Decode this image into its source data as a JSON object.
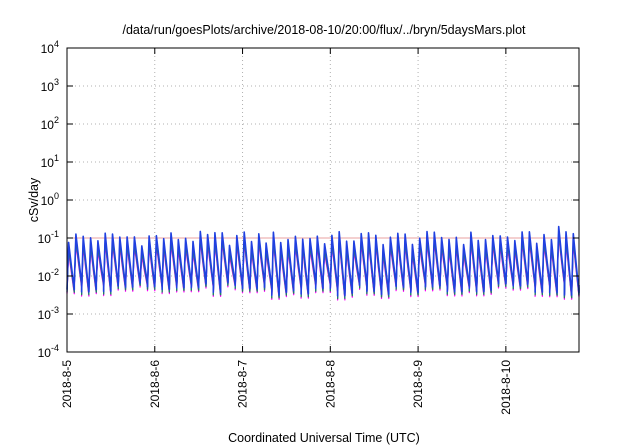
{
  "chart_data": {
    "type": "line",
    "title": "/data/run/goesPlots/archive/2018-08-10/20:00/flux/../bryn/5daysMars.plot",
    "xlabel": "Coordinated Universal Time (UTC)",
    "ylabel": "cSv/day",
    "y_scale": "log",
    "ylim": [
      0.0001,
      10000
    ],
    "y_ticks": [
      {
        "base": "10",
        "exp": "-4",
        "value": 0.0001
      },
      {
        "base": "10",
        "exp": "-3",
        "value": 0.001
      },
      {
        "base": "10",
        "exp": "-2",
        "value": 0.01
      },
      {
        "base": "10",
        "exp": "-1",
        "value": 0.1
      },
      {
        "base": "10",
        "exp": "0",
        "value": 1
      },
      {
        "base": "10",
        "exp": "1",
        "value": 10
      },
      {
        "base": "10",
        "exp": "2",
        "value": 100
      },
      {
        "base": "10",
        "exp": "3",
        "value": 1000
      },
      {
        "base": "10",
        "exp": "4",
        "value": 10000
      }
    ],
    "x_ticks": [
      "2018-8-5",
      "2018-8-6",
      "2018-8-7",
      "2018-8-8",
      "2018-8-9",
      "2018-8-10"
    ],
    "xlim": [
      "2018-08-05T00:00",
      "2018-08-10T20:00"
    ],
    "grid": true,
    "pattern": {
      "oscillations_per_day": 12,
      "peak_range": [
        0.06,
        0.15
      ],
      "trough_range": [
        0.0025,
        0.006
      ],
      "note_increase_after": "2018-08-10T10:00"
    },
    "reference_line": {
      "value": 0.1,
      "color": "#e8a0a0"
    },
    "series": [
      {
        "color": "#ff00ff",
        "scale": 0.55
      },
      {
        "color": "#e000e0",
        "scale": 0.65
      },
      {
        "color": "#8080ff",
        "scale": 0.8
      },
      {
        "color": "#00c0c0",
        "scale": 0.75
      },
      {
        "color": "#208060",
        "scale": 0.7
      },
      {
        "color": "#2040e0",
        "scale": 1.0
      }
    ]
  }
}
